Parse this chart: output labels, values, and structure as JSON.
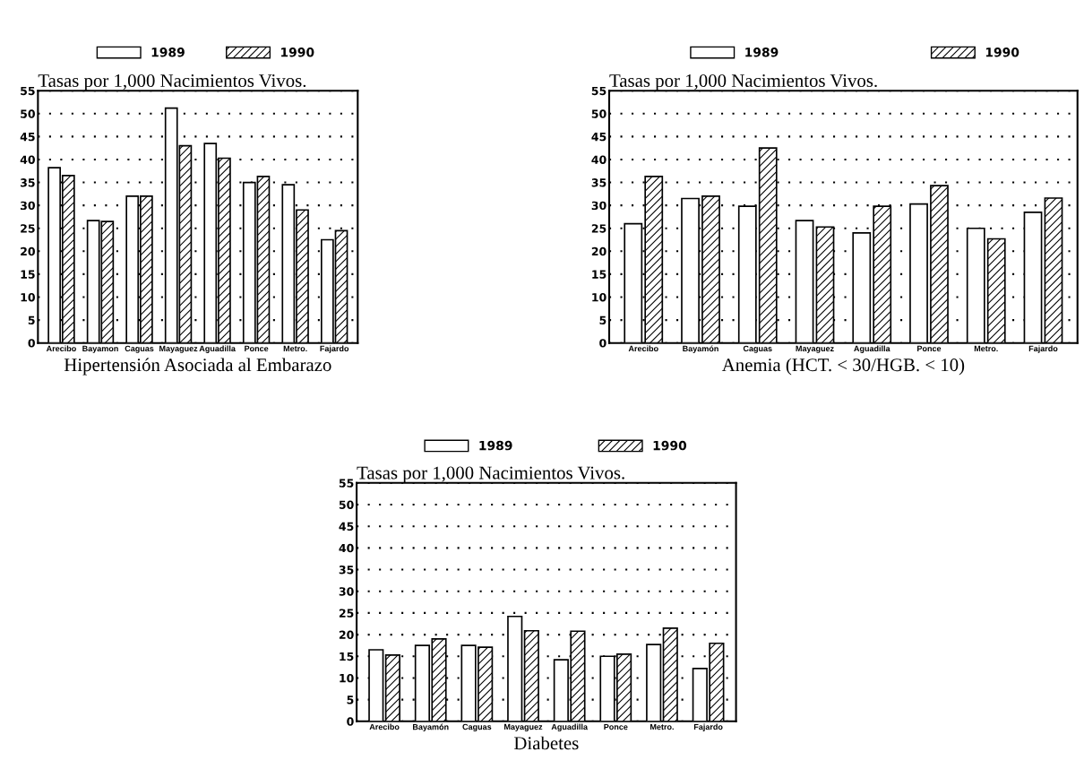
{
  "chart_data": [
    {
      "type": "bar",
      "title": "Tasas por 1,000 Nacimientos Vivos.",
      "xlabel": "Hipertensión Asociada al Embarazo",
      "categories": [
        "Arecibo",
        "Bayamon",
        "Caguas",
        "Mayaguez",
        "Aguadilla",
        "Ponce",
        "Metro.",
        "Fajardo"
      ],
      "series": [
        {
          "name": "1989",
          "color": "#ffffff",
          "values": [
            38.2,
            26.7,
            32,
            51.2,
            43.5,
            35,
            34.5,
            22.5
          ]
        },
        {
          "name": "1990",
          "color": "#000000",
          "values": [
            36.5,
            26.5,
            32,
            43,
            40.3,
            36.3,
            29,
            24.5
          ]
        }
      ],
      "ylim": [
        0,
        55
      ],
      "yticks": [
        0,
        5,
        10,
        15,
        20,
        25,
        30,
        35,
        40,
        45,
        50,
        55
      ],
      "grid": "y",
      "legend": "top"
    },
    {
      "type": "bar",
      "title": "Tasas por 1,000 Nacimientos Vivos.",
      "xlabel": "Anemia (HCT. < 30/HGB. < 10)",
      "categories": [
        "Arecibo",
        "Bayamón",
        "Caguas",
        "Mayaguez",
        "Aguadilla",
        "Ponce",
        "Metro.",
        "Fajardo"
      ],
      "series": [
        {
          "name": "1989",
          "color": "#ffffff",
          "values": [
            26,
            31.5,
            29.8,
            26.7,
            24,
            30.3,
            25,
            28.5
          ]
        },
        {
          "name": "1990",
          "color": "#000000",
          "values": [
            36.3,
            32,
            42.5,
            25.3,
            29.8,
            34.3,
            22.7,
            31.6
          ]
        }
      ],
      "ylim": [
        0,
        55
      ],
      "yticks": [
        0,
        5,
        10,
        15,
        20,
        25,
        30,
        35,
        40,
        45,
        50,
        55
      ],
      "grid": "y",
      "legend": "top"
    },
    {
      "type": "bar",
      "title": "Tasas por 1,000 Nacimientos Vivos.",
      "xlabel": "Diabetes",
      "categories": [
        "Arecibo",
        "Bayamón",
        "Caguas",
        "Mayaguez",
        "Aguadilla",
        "Ponce",
        "Metro.",
        "Fajardo"
      ],
      "series": [
        {
          "name": "1989",
          "color": "#ffffff",
          "values": [
            16.5,
            17.5,
            17.5,
            24.2,
            14.2,
            15,
            17.7,
            12.2
          ]
        },
        {
          "name": "1990",
          "color": "#000000",
          "values": [
            15.3,
            19,
            17.1,
            20.9,
            20.8,
            15.5,
            21.5,
            18
          ]
        }
      ],
      "ylim": [
        0,
        55
      ],
      "yticks": [
        0,
        5,
        10,
        15,
        20,
        25,
        30,
        35,
        40,
        45,
        50,
        55
      ],
      "grid": "y",
      "legend": "top"
    }
  ]
}
